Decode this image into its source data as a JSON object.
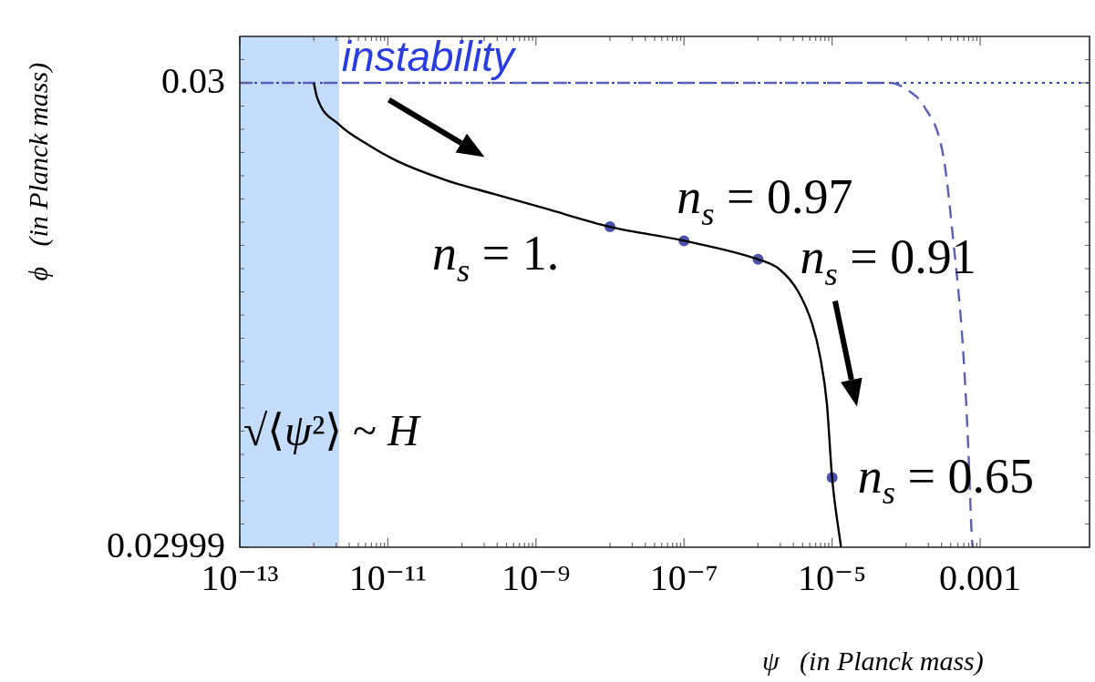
{
  "chart_data": {
    "type": "line",
    "xlabel": "ψ   (in Planck mass)",
    "ylabel": "ϕ   (in Planck mass)",
    "log": "x",
    "xlim": [
      1e-13,
      0.03
    ],
    "xticks": [
      {
        "value": 1e-13,
        "label": "10⁻¹³"
      },
      {
        "value": 1e-12,
        "label": null
      },
      {
        "value": 2e-12,
        "label": null
      },
      {
        "value": 3e-12,
        "label": null
      },
      {
        "value": 4e-12,
        "label": null
      },
      {
        "value": 5e-12,
        "label": null
      },
      {
        "value": 6e-12,
        "label": null
      },
      {
        "value": 7e-12,
        "label": null
      },
      {
        "value": 8e-12,
        "label": null
      },
      {
        "value": 9e-12,
        "label": null
      },
      {
        "value": 1e-11,
        "label": "10⁻¹¹"
      },
      {
        "value": 1e-10,
        "label": null
      },
      {
        "value": 2e-10,
        "label": null
      },
      {
        "value": 3e-10,
        "label": null
      },
      {
        "value": 4e-10,
        "label": null
      },
      {
        "value": 5e-10,
        "label": null
      },
      {
        "value": 6e-10,
        "label": null
      },
      {
        "value": 7e-10,
        "label": null
      },
      {
        "value": 8e-10,
        "label": null
      },
      {
        "value": 9e-10,
        "label": null
      },
      {
        "value": 1e-09,
        "label": "10⁻⁹"
      },
      {
        "value": 1e-08,
        "label": null
      },
      {
        "value": 2e-08,
        "label": null
      },
      {
        "value": 3e-08,
        "label": null
      },
      {
        "value": 4e-08,
        "label": null
      },
      {
        "value": 5e-08,
        "label": null
      },
      {
        "value": 6e-08,
        "label": null
      },
      {
        "value": 7e-08,
        "label": null
      },
      {
        "value": 8e-08,
        "label": null
      },
      {
        "value": 9e-08,
        "label": null
      },
      {
        "value": 1e-07,
        "label": "10⁻⁷"
      },
      {
        "value": 1e-06,
        "label": null
      },
      {
        "value": 2e-06,
        "label": null
      },
      {
        "value": 3e-06,
        "label": null
      },
      {
        "value": 4e-06,
        "label": null
      },
      {
        "value": 5e-06,
        "label": null
      },
      {
        "value": 6e-06,
        "label": null
      },
      {
        "value": 7e-06,
        "label": null
      },
      {
        "value": 8e-06,
        "label": null
      },
      {
        "value": 9e-06,
        "label": null
      },
      {
        "value": 1e-05,
        "label": "10⁻⁵"
      },
      {
        "value": 0.0001,
        "label": null
      },
      {
        "value": 0.0002,
        "label": null
      },
      {
        "value": 0.0003,
        "label": null
      },
      {
        "value": 0.0004,
        "label": null
      },
      {
        "value": 0.0005,
        "label": null
      },
      {
        "value": 0.0006,
        "label": null
      },
      {
        "value": 0.0007,
        "label": null
      },
      {
        "value": 0.0008,
        "label": null
      },
      {
        "value": 0.0009,
        "label": null
      },
      0.001
    ],
    "ylim": [
      0.02999,
      0.030001
    ],
    "yticks": [
      0.02999,
      {
        "value": 0.0299905,
        "label": null
      },
      {
        "value": 0.029991,
        "label": null
      },
      {
        "value": 0.0299915,
        "label": null
      },
      {
        "value": 0.029992,
        "label": null
      },
      {
        "value": 0.0299925,
        "label": null
      },
      {
        "value": 0.029993,
        "label": null
      },
      {
        "value": 0.0299935,
        "label": null
      },
      {
        "value": 0.029994,
        "label": null
      },
      {
        "value": 0.0299945,
        "label": null
      },
      {
        "value": 0.029995,
        "label": null
      },
      {
        "value": 0.0299955,
        "label": null
      },
      {
        "value": 0.029996,
        "label": null
      },
      {
        "value": 0.0299965,
        "label": null
      },
      {
        "value": 0.029997,
        "label": null
      },
      {
        "value": 0.0299975,
        "label": null
      },
      {
        "value": 0.029998,
        "label": null
      },
      {
        "value": 0.0299985,
        "label": null
      },
      {
        "value": 0.029999,
        "label": null
      },
      {
        "value": 0.0299995,
        "label": null
      },
      0.03,
      {
        "value": 0.0300005,
        "label": null
      }
    ],
    "series": [
      {
        "type": "line",
        "color": "#000000",
        "x": [
          1e-12,
          1.1e-12,
          2.2e-12,
          5e-12,
          1.4e-11,
          6.2e-11,
          2.8e-10,
          1.3e-09,
          1e-08,
          1e-07,
          1e-06,
          1.9e-06,
          3.5e-06,
          5.4e-06,
          6.9e-06,
          8.5e-06,
          1e-05,
          1.32e-05
        ],
        "values": [
          0.03,
          0.0299997,
          0.0299991,
          0.0299987,
          0.0299983,
          0.0299979,
          0.0299976,
          0.0299973,
          0.0299969,
          0.0299966,
          0.0299962,
          0.029996,
          0.0299955,
          0.0299948,
          0.0299941,
          0.0299931,
          0.0299915,
          0.02999
        ]
      },
      {
        "type": "line",
        "color": "#5a60b8",
        "line_style": "dashed",
        "x": [
          1e-13,
          6e-05,
          0.000115,
          0.000174,
          0.00032,
          0.00044,
          0.00058,
          0.00068,
          0.00078,
          0.0008
        ],
        "values": [
          0.03,
          0.03,
          0.0299998,
          0.0299995,
          0.0299984,
          0.0299965,
          0.0299944,
          0.0299924,
          0.0299901,
          0.02999
        ]
      },
      {
        "type": "scatter",
        "color": "#4b52ad",
        "marker": "circle",
        "x": [
          1e-08,
          1e-07,
          1e-06,
          1e-05
        ],
        "values": [
          0.0299969,
          0.0299966,
          0.0299962,
          0.0299915
        ]
      }
    ],
    "ref_lines": [
      {
        "axis": "y",
        "value": 0.03,
        "label": "instability",
        "color": "#2a3de0",
        "line_style": "dotted"
      }
    ],
    "bands": [
      {
        "axis": "x",
        "from": 1e-13,
        "to": 2.2e-12,
        "label": "√⟨ψ²⟩ ~ H",
        "color": "#c2dcfa"
      }
    ],
    "annotations": [
      {
        "text": "n$_{s}$ = 1.",
        "x": 1e-08,
        "y": 0.0299969
      },
      {
        "text": "n$_{s}$ = 0.97",
        "x": 1e-07,
        "y": 0.0299966
      },
      {
        "text": "n$_{s}$ = 0.91",
        "x": 1e-06,
        "y": 0.0299962
      },
      {
        "text": "n$_{s}$ = 0.65",
        "x": 1e-05,
        "y": 0.0299915
      }
    ]
  }
}
